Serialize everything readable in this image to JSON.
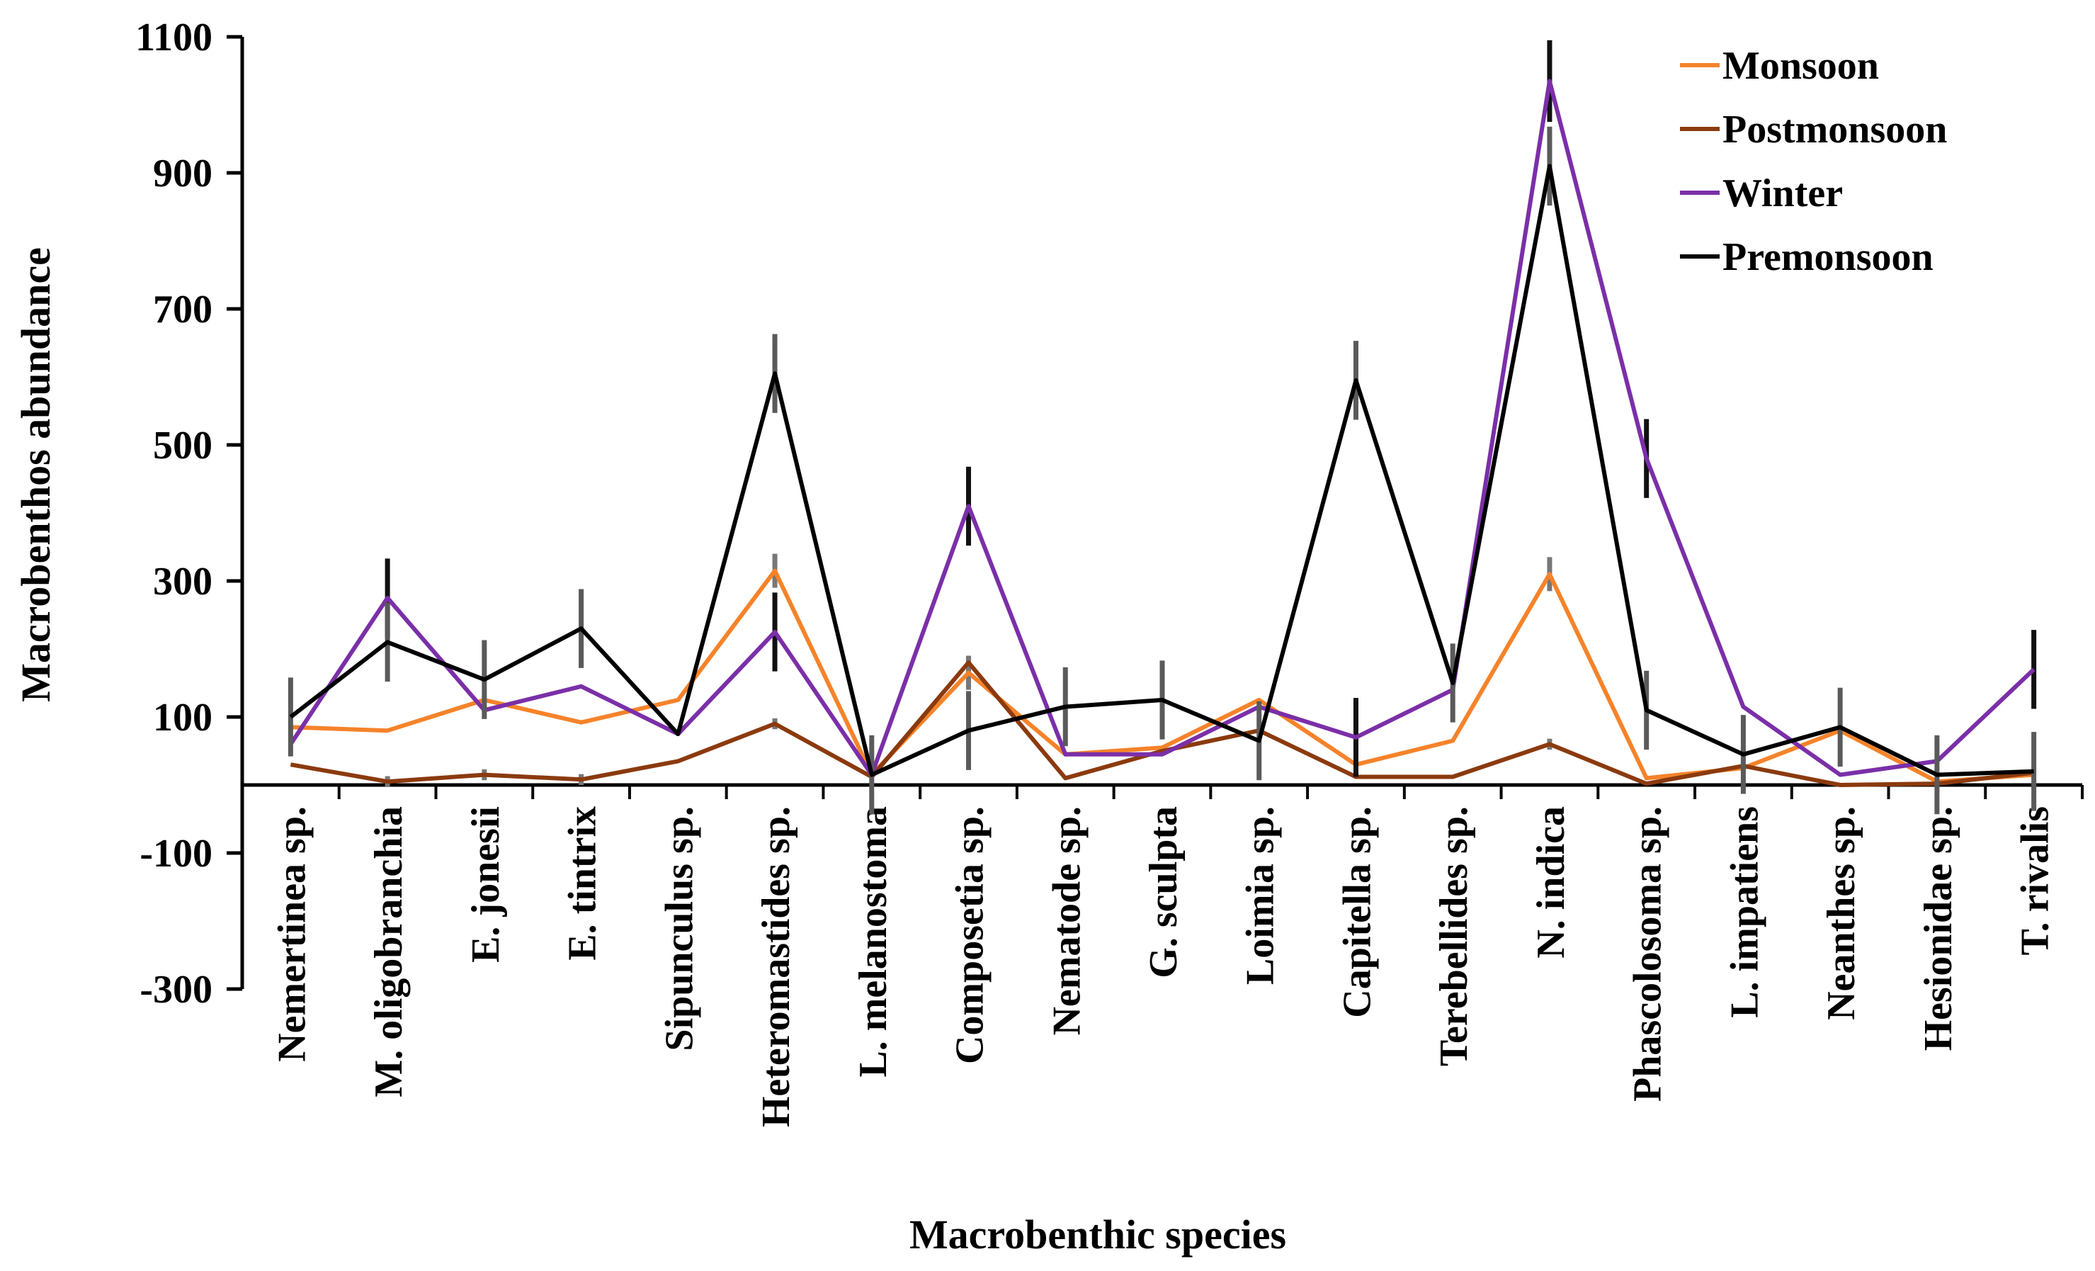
{
  "chart_data": {
    "type": "line",
    "title": "",
    "xlabel": "Macrobenthic species",
    "ylabel": "Macrobenthos abundance",
    "ylim": [
      -300,
      1100
    ],
    "yticks": [
      -300,
      -100,
      100,
      300,
      500,
      700,
      900,
      1100
    ],
    "grid": false,
    "legend_position": "top-right",
    "categories": [
      "Nemertinea sp.",
      "M. oligobranchia",
      "E. jonesii",
      "E. tintrix",
      "Sipunculus sp.",
      "Heteromastides sp.",
      "L. melanostoma",
      "Composetia sp.",
      "Nematode sp.",
      "G. sculpta",
      "Loimia sp.",
      "Capitella sp.",
      "Terebellides sp.",
      "N. indica",
      "Phascolosoma sp.",
      "L. impatiens",
      "Neanthes sp.",
      "Hesionidae sp.",
      "T. rivalis"
    ],
    "series": [
      {
        "name": "Monsoon",
        "color": "#f5832a",
        "values": [
          85,
          80,
          125,
          92,
          125,
          315,
          15,
          165,
          45,
          55,
          125,
          30,
          65,
          310,
          10,
          25,
          80,
          5,
          15
        ],
        "errors": [
          0,
          0,
          0,
          0,
          0,
          25,
          0,
          25,
          0,
          0,
          0,
          0,
          0,
          25,
          0,
          0,
          0,
          0,
          0
        ]
      },
      {
        "name": "Postmonsoon",
        "color": "#8b3a0e",
        "values": [
          30,
          5,
          15,
          8,
          35,
          90,
          12,
          180,
          10,
          50,
          80,
          12,
          12,
          60,
          2,
          28,
          0,
          2,
          18
        ],
        "errors": [
          0,
          8,
          8,
          8,
          0,
          8,
          0,
          10,
          0,
          0,
          0,
          0,
          0,
          8,
          0,
          0,
          0,
          0,
          0
        ]
      },
      {
        "name": "Winter",
        "color": "#7b2fa8",
        "values": [
          60,
          275,
          110,
          145,
          75,
          225,
          15,
          410,
          45,
          45,
          115,
          70,
          140,
          1035,
          480,
          115,
          15,
          35,
          170
        ],
        "errors": [
          0,
          58,
          0,
          0,
          0,
          58,
          0,
          58,
          0,
          0,
          0,
          58,
          0,
          60,
          58,
          0,
          0,
          0,
          58
        ]
      },
      {
        "name": "Premonsoon",
        "color": "#000000",
        "values": [
          100,
          210,
          155,
          230,
          75,
          605,
          15,
          80,
          115,
          125,
          65,
          595,
          150,
          910,
          110,
          45,
          85,
          15,
          20
        ],
        "errors": [
          58,
          58,
          58,
          58,
          0,
          58,
          58,
          58,
          58,
          58,
          58,
          58,
          58,
          58,
          58,
          58,
          58,
          58,
          58
        ]
      }
    ]
  }
}
